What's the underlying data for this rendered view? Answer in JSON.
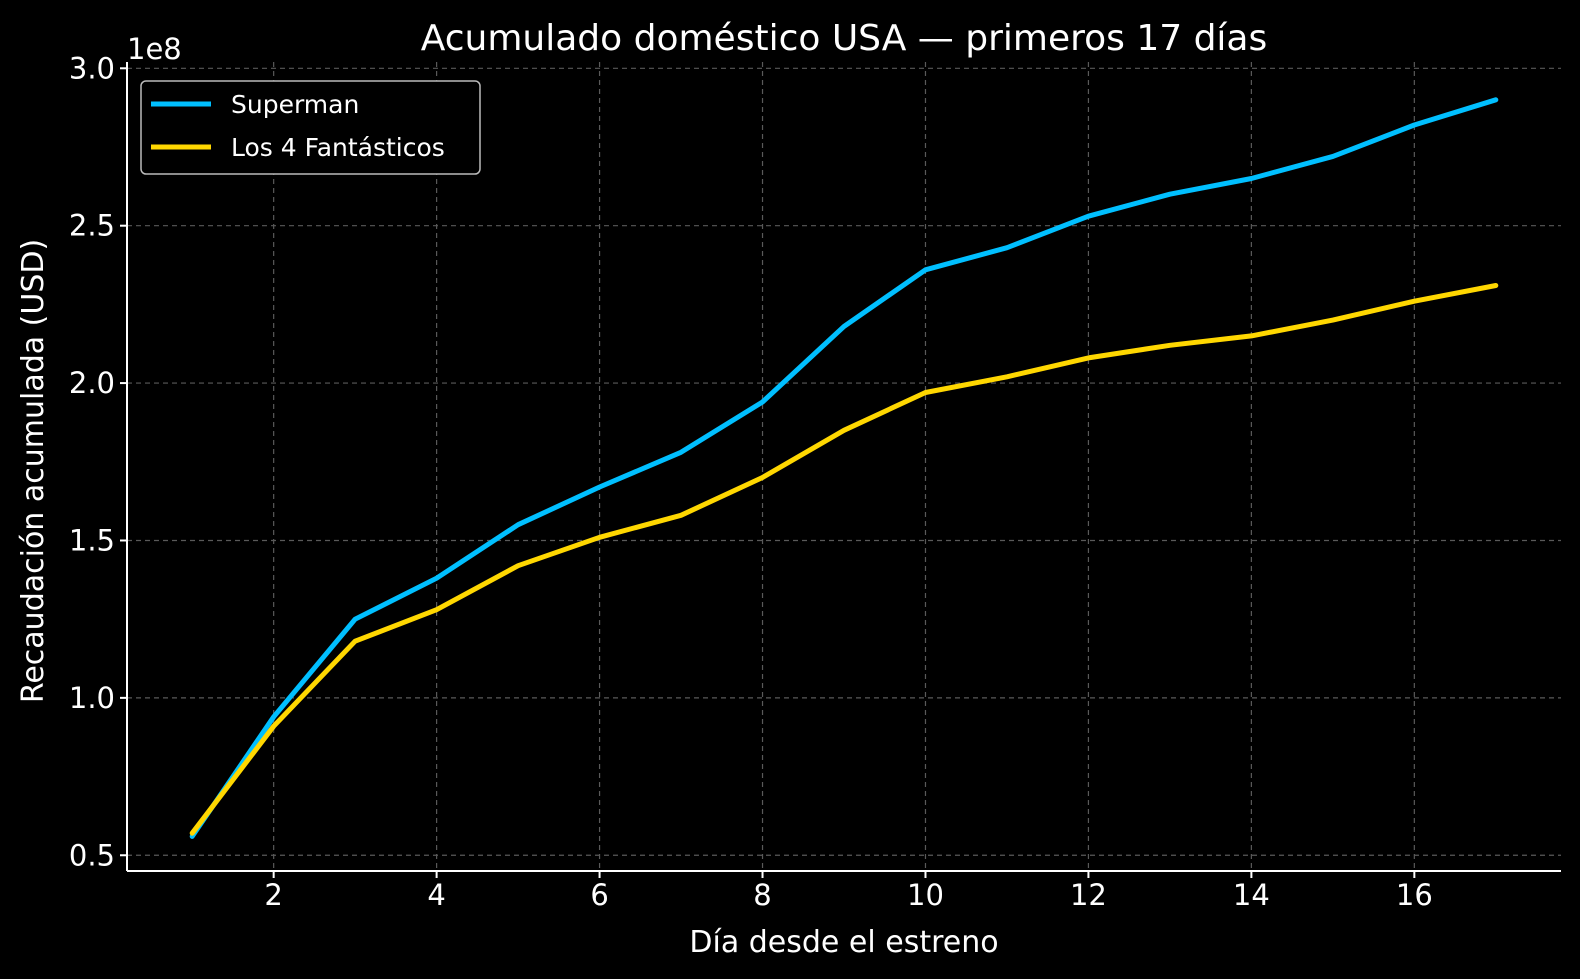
{
  "chart_data": {
    "type": "line",
    "title": "Acumulado doméstico USA — primeros 17 días",
    "xlabel": "Día desde el estreno",
    "ylabel": "Recaudación acumulada (USD)",
    "y_offset_label": "1e8",
    "xlim": [
      0.2,
      17.8
    ],
    "ylim": [
      45000000,
      302000000
    ],
    "x_ticks": [
      2,
      4,
      6,
      8,
      10,
      12,
      14,
      16
    ],
    "x_tick_labels": [
      "2",
      "4",
      "6",
      "8",
      "10",
      "12",
      "14",
      "16"
    ],
    "y_ticks": [
      50000000,
      100000000,
      150000000,
      200000000,
      250000000,
      300000000
    ],
    "y_tick_labels": [
      "0.5",
      "1.0",
      "1.5",
      "2.0",
      "2.5",
      "3.0"
    ],
    "grid": true,
    "legend_position": "top-left",
    "x": [
      1,
      2,
      3,
      4,
      5,
      6,
      7,
      8,
      9,
      10,
      11,
      12,
      13,
      14,
      15,
      16,
      17
    ],
    "series": [
      {
        "name": "Superman",
        "color": "#00bfff",
        "values": [
          56000000,
          94000000,
          125000000,
          138000000,
          155000000,
          167000000,
          178000000,
          194000000,
          218000000,
          236000000,
          243000000,
          253000000,
          260000000,
          265000000,
          272000000,
          282000000,
          290000000
        ]
      },
      {
        "name": "Los 4 Fantásticos",
        "color": "#ffd700",
        "values": [
          57000000,
          91000000,
          118000000,
          128000000,
          142000000,
          151000000,
          158000000,
          170000000,
          185000000,
          197000000,
          202000000,
          208000000,
          212000000,
          215000000,
          220000000,
          226000000,
          231000000
        ]
      }
    ]
  }
}
